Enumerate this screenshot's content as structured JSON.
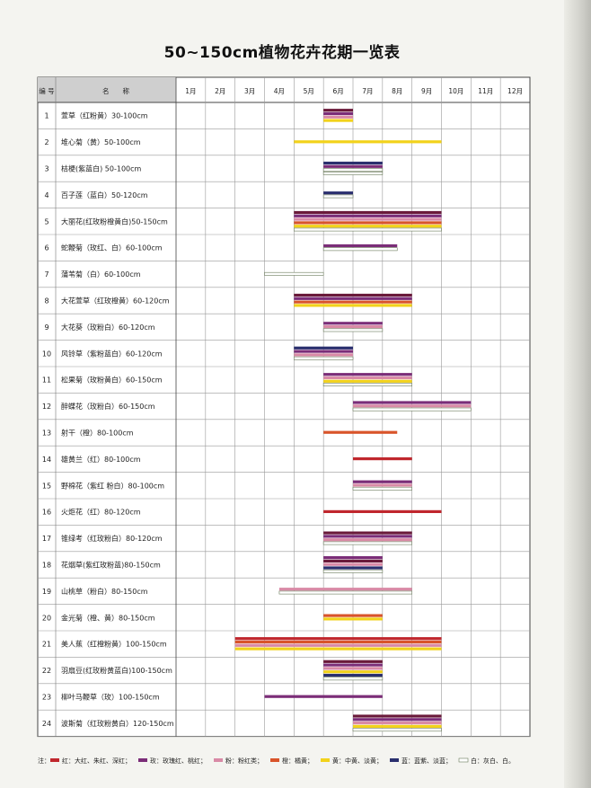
{
  "title": "50~150cm植物花卉花期一览表",
  "headers": {
    "num": "编 号",
    "name": "名　　称"
  },
  "months": [
    "1月",
    "2月",
    "3月",
    "4月",
    "5月",
    "6月",
    "7月",
    "8月",
    "9月",
    "10月",
    "11月",
    "12月"
  ],
  "chart_data": {
    "type": "gantt",
    "x_unit": "month",
    "colors": {
      "red": "#c0272d",
      "rose": "#6a1a3a",
      "purple": "#7b2d78",
      "pink": "#d98aa6",
      "orange": "#d9542a",
      "yellow": "#f2d21b",
      "blue": "#2a2f6e",
      "white": "#ffffff"
    },
    "rows": [
      {
        "num": "1",
        "name": "萱草（红粉黄）30-100cm",
        "start": 6.0,
        "end": 7.0,
        "bars": [
          "rose",
          "purple",
          "pink",
          "yellow"
        ]
      },
      {
        "num": "2",
        "name": "堆心菊（黄）50-100cm",
        "start": 5.0,
        "end": 10.0,
        "bars": [
          "yellow"
        ]
      },
      {
        "num": "3",
        "name": "桔梗(紫蓝白) 50-100cm",
        "start": 6.0,
        "end": 8.0,
        "bars": [
          "blue",
          "purple",
          "white",
          "white"
        ]
      },
      {
        "num": "4",
        "name": "百子莲（蓝白）50-120cm",
        "start": 6.0,
        "end": 7.0,
        "bars": [
          "blue",
          "white"
        ]
      },
      {
        "num": "5",
        "name": "大丽花(红玫粉橙黄白)50-150cm",
        "start": 5.0,
        "end": 10.0,
        "bars": [
          "rose",
          "purple",
          "pink",
          "orange",
          "yellow",
          "white"
        ]
      },
      {
        "num": "6",
        "name": "蛇鞭菊（玫红、白）60-100cm",
        "start": 6.0,
        "end": 8.5,
        "bars": [
          "purple",
          "white"
        ]
      },
      {
        "num": "7",
        "name": "蒲苇菊（白）60-100cm",
        "start": 4.0,
        "end": 6.0,
        "bars": [
          "white"
        ]
      },
      {
        "num": "8",
        "name": "大花萱草（红玫橙黄）60-120cm",
        "start": 5.0,
        "end": 9.0,
        "bars": [
          "rose",
          "purple",
          "orange",
          "yellow"
        ]
      },
      {
        "num": "9",
        "name": "大花葵（玫粉白）60-120cm",
        "start": 6.0,
        "end": 8.0,
        "bars": [
          "purple",
          "pink",
          "white"
        ]
      },
      {
        "num": "10",
        "name": "风铃草（紫粉蓝白）60-120cm",
        "start": 5.0,
        "end": 7.0,
        "bars": [
          "blue",
          "purple",
          "pink",
          "white"
        ]
      },
      {
        "num": "11",
        "name": "松果菊（玫粉黄白）60-150cm",
        "start": 6.0,
        "end": 9.0,
        "bars": [
          "purple",
          "pink",
          "yellow",
          "white"
        ]
      },
      {
        "num": "12",
        "name": "醉蝶花（玫粉白）60-150cm",
        "start": 7.0,
        "end": 11.0,
        "bars": [
          "purple",
          "pink",
          "white"
        ]
      },
      {
        "num": "13",
        "name": "射干（橙）80-100cm",
        "start": 6.0,
        "end": 8.5,
        "bars": [
          "orange"
        ]
      },
      {
        "num": "14",
        "name": "雄黄兰（红）80-100cm",
        "start": 7.0,
        "end": 9.0,
        "bars": [
          "red"
        ]
      },
      {
        "num": "15",
        "name": "野棉花（紫红 粉白）80-100cm",
        "start": 7.0,
        "end": 9.0,
        "bars": [
          "purple",
          "pink",
          "white"
        ]
      },
      {
        "num": "16",
        "name": "火炬花（红）80-120cm",
        "start": 6.0,
        "end": 10.0,
        "bars": [
          "red"
        ]
      },
      {
        "num": "17",
        "name": "锥绿考（红玫粉白）80-120cm",
        "start": 6.0,
        "end": 9.0,
        "bars": [
          "rose",
          "purple",
          "pink",
          "white"
        ]
      },
      {
        "num": "18",
        "name": "花烟草(紫红玫粉蓝)80-150cm",
        "start": 6.0,
        "end": 8.0,
        "bars": [
          "purple",
          "rose",
          "pink",
          "blue",
          "white"
        ]
      },
      {
        "num": "19",
        "name": "山桃草（粉白）80-150cm",
        "start": 4.5,
        "end": 9.0,
        "bars": [
          "pink",
          "white"
        ]
      },
      {
        "num": "20",
        "name": "金光菊（橙、黄）80-150cm",
        "start": 6.0,
        "end": 8.0,
        "bars": [
          "orange",
          "yellow"
        ]
      },
      {
        "num": "21",
        "name": "美人蕉（红橙粉黄）100-150cm",
        "start": 3.0,
        "end": 10.0,
        "bars": [
          "red",
          "orange",
          "pink",
          "yellow"
        ]
      },
      {
        "num": "22",
        "name": "羽扇豆(红玫粉黄蓝白)100-150cm",
        "start": 6.0,
        "end": 8.0,
        "bars": [
          "rose",
          "purple",
          "pink",
          "yellow",
          "blue",
          "white"
        ]
      },
      {
        "num": "23",
        "name": "柳叶马鞭草（玫）100-150cm",
        "start": 4.0,
        "end": 8.0,
        "bars": [
          "purple"
        ]
      },
      {
        "num": "24",
        "name": "波斯菊（红玫粉黄白）120-150cm",
        "start": 7.0,
        "end": 10.0,
        "bars": [
          "rose",
          "purple",
          "pink",
          "yellow",
          "white"
        ]
      }
    ]
  },
  "legend": {
    "prefix": "注：",
    "items": [
      {
        "color": "red",
        "text": "红：大红、朱红、深红；"
      },
      {
        "color": "purple",
        "text": "玫：玫瑰红、桃红；"
      },
      {
        "color": "pink",
        "text": "粉：粉红类；"
      },
      {
        "color": "orange",
        "text": "橙：橘黄；"
      },
      {
        "color": "yellow",
        "text": "黄：中黄、淡黄；"
      },
      {
        "color": "blue",
        "text": "蓝：蓝紫、淡蓝；"
      },
      {
        "color": "white",
        "text": "白：灰白、白。"
      }
    ]
  }
}
